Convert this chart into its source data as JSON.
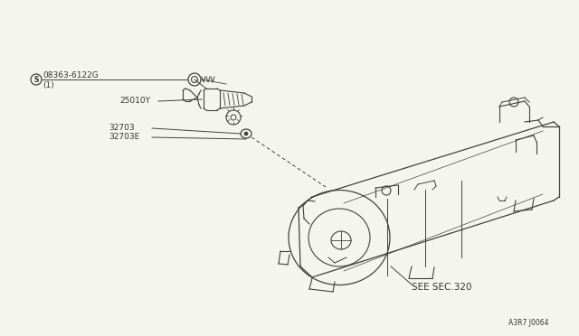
{
  "bg_color": "#f5f5f0",
  "line_color": "#404040",
  "text_color": "#333333",
  "fig_width": 6.4,
  "fig_height": 3.72,
  "dpi": 100,
  "labels": {
    "part1_circle": "S",
    "part1_id": "08363-6122G",
    "part1_sub": "(1)",
    "part2_id": "25010Y",
    "part3_id": "32703",
    "part4_id": "32703E",
    "ref_note": "SEE SEC.320",
    "diagram_id": "A3R7 J0064"
  },
  "font_size_label": 6.5,
  "font_size_ref": 7.5,
  "font_size_diagram": 5.5
}
